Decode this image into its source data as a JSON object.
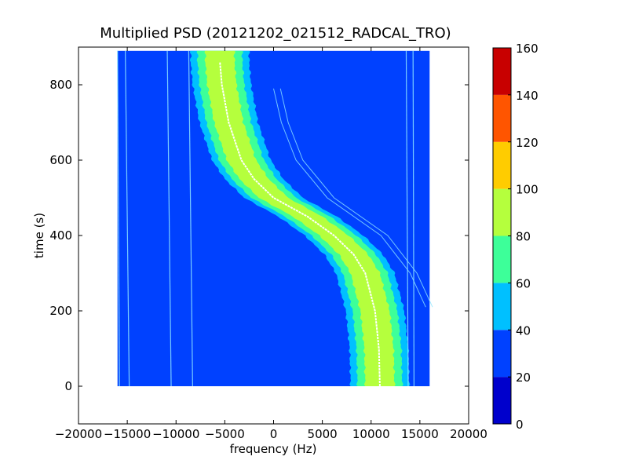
{
  "chart_data": {
    "type": "heatmap",
    "title": "Multiplied PSD (20121202_021512_RADCAL_TRO)",
    "xlabel": "frequency (Hz)",
    "ylabel": "time (s)",
    "xlim": [
      -20000,
      20000
    ],
    "ylim": [
      -100,
      900
    ],
    "x_ticks": [
      -20000,
      -15000,
      -10000,
      -5000,
      0,
      5000,
      10000,
      15000,
      20000
    ],
    "x_tick_labels": [
      "−20000",
      "−15000",
      "−10000",
      "−5000",
      "0",
      "5000",
      "10000",
      "15000",
      "20000"
    ],
    "y_ticks": [
      0,
      200,
      400,
      600,
      800
    ],
    "y_tick_labels": [
      "0",
      "200",
      "400",
      "600",
      "800"
    ],
    "data_extent": {
      "x": [
        -16000,
        16000
      ],
      "y": [
        0,
        890
      ]
    },
    "background_level": 30,
    "colorbar": {
      "ticks": [
        0,
        20,
        40,
        60,
        80,
        100,
        120,
        140,
        160
      ],
      "tick_labels": [
        "0",
        "20",
        "40",
        "60",
        "80",
        "100",
        "120",
        "140",
        "160"
      ],
      "bands": [
        {
          "from": 0,
          "to": 20,
          "color": "#0000cc"
        },
        {
          "from": 20,
          "to": 40,
          "color": "#0041ff"
        },
        {
          "from": 40,
          "to": 60,
          "color": "#00c0ff"
        },
        {
          "from": 60,
          "to": 80,
          "color": "#3dff99"
        },
        {
          "from": 80,
          "to": 100,
          "color": "#b5ff3d"
        },
        {
          "from": 100,
          "to": 120,
          "color": "#ffcc00"
        },
        {
          "from": 120,
          "to": 140,
          "color": "#ff5500"
        },
        {
          "from": 140,
          "to": 160,
          "color": "#c80000"
        }
      ]
    },
    "main_track": {
      "description_level_center": 90,
      "points": [
        {
          "t": 860,
          "f": -5500
        },
        {
          "t": 800,
          "f": -5300
        },
        {
          "t": 700,
          "f": -4600
        },
        {
          "t": 600,
          "f": -3300
        },
        {
          "t": 550,
          "f": -2000
        },
        {
          "t": 500,
          "f": 0
        },
        {
          "t": 450,
          "f": 3500
        },
        {
          "t": 400,
          "f": 6200
        },
        {
          "t": 350,
          "f": 8200
        },
        {
          "t": 300,
          "f": 9400
        },
        {
          "t": 200,
          "f": 10400
        },
        {
          "t": 100,
          "f": 10800
        },
        {
          "t": 0,
          "f": 10900
        }
      ],
      "band_half_widths_hz": [
        {
          "level": 50,
          "hw": 3000
        },
        {
          "level": 70,
          "hw": 2300
        },
        {
          "level": 90,
          "hw": 1500
        }
      ]
    },
    "vertical_lines": [
      {
        "f0": -16000,
        "f1": -15800
      },
      {
        "f0": -15200,
        "f1": -14800
      },
      {
        "f0": -10900,
        "f1": -10500
      },
      {
        "f0": -8700,
        "f1": -8300
      },
      {
        "f0": 13600,
        "f1": 13800
      },
      {
        "f0": 14300,
        "f1": 14400
      }
    ],
    "side_track": {
      "points": [
        {
          "t": 790,
          "f": 0
        },
        {
          "t": 700,
          "f": 800
        },
        {
          "t": 600,
          "f": 2300
        },
        {
          "t": 500,
          "f": 5500
        },
        {
          "t": 400,
          "f": 11000
        },
        {
          "t": 300,
          "f": 14000
        },
        {
          "t": 210,
          "f": 15600
        }
      ],
      "offset_hz": 700
    }
  }
}
